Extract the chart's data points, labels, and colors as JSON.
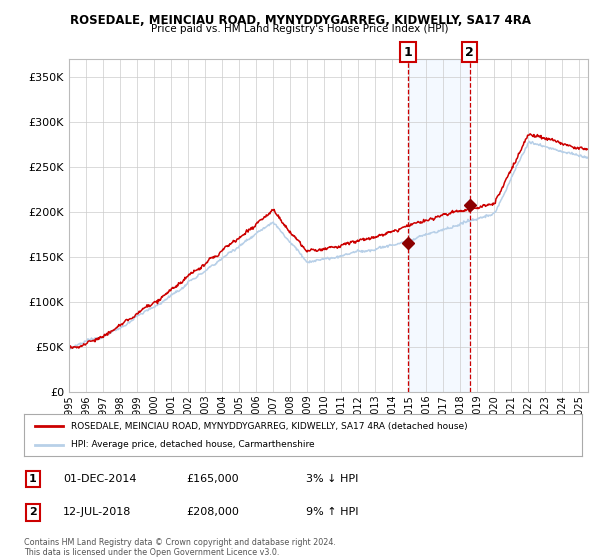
{
  "title": "ROSEDALE, MEINCIAU ROAD, MYNYDDYGARREG, KIDWELLY, SA17 4RA",
  "subtitle": "Price paid vs. HM Land Registry's House Price Index (HPI)",
  "legend_line1": "ROSEDALE, MEINCIAU ROAD, MYNYDDYGARREG, KIDWELLY, SA17 4RA (detached house)",
  "legend_line2": "HPI: Average price, detached house, Carmarthenshire",
  "annotation1_date": "01-DEC-2014",
  "annotation1_price": "£165,000",
  "annotation1_hpi": "3% ↓ HPI",
  "annotation2_date": "12-JUL-2018",
  "annotation2_price": "£208,000",
  "annotation2_hpi": "9% ↑ HPI",
  "footer": "Contains HM Land Registry data © Crown copyright and database right 2024.\nThis data is licensed under the Open Government Licence v3.0.",
  "sale1_year": 2014.92,
  "sale1_value": 165000,
  "sale2_year": 2018.54,
  "sale2_value": 208000,
  "hpi_color": "#b8d0e8",
  "price_color": "#cc0000",
  "marker_color": "#8b0000",
  "shade_color": "#ddeeff",
  "vline_color": "#cc0000",
  "grid_color": "#cccccc",
  "background_color": "#ffffff",
  "ylim": [
    0,
    370000
  ],
  "xlim_start": 1995,
  "xlim_end": 2025.5
}
